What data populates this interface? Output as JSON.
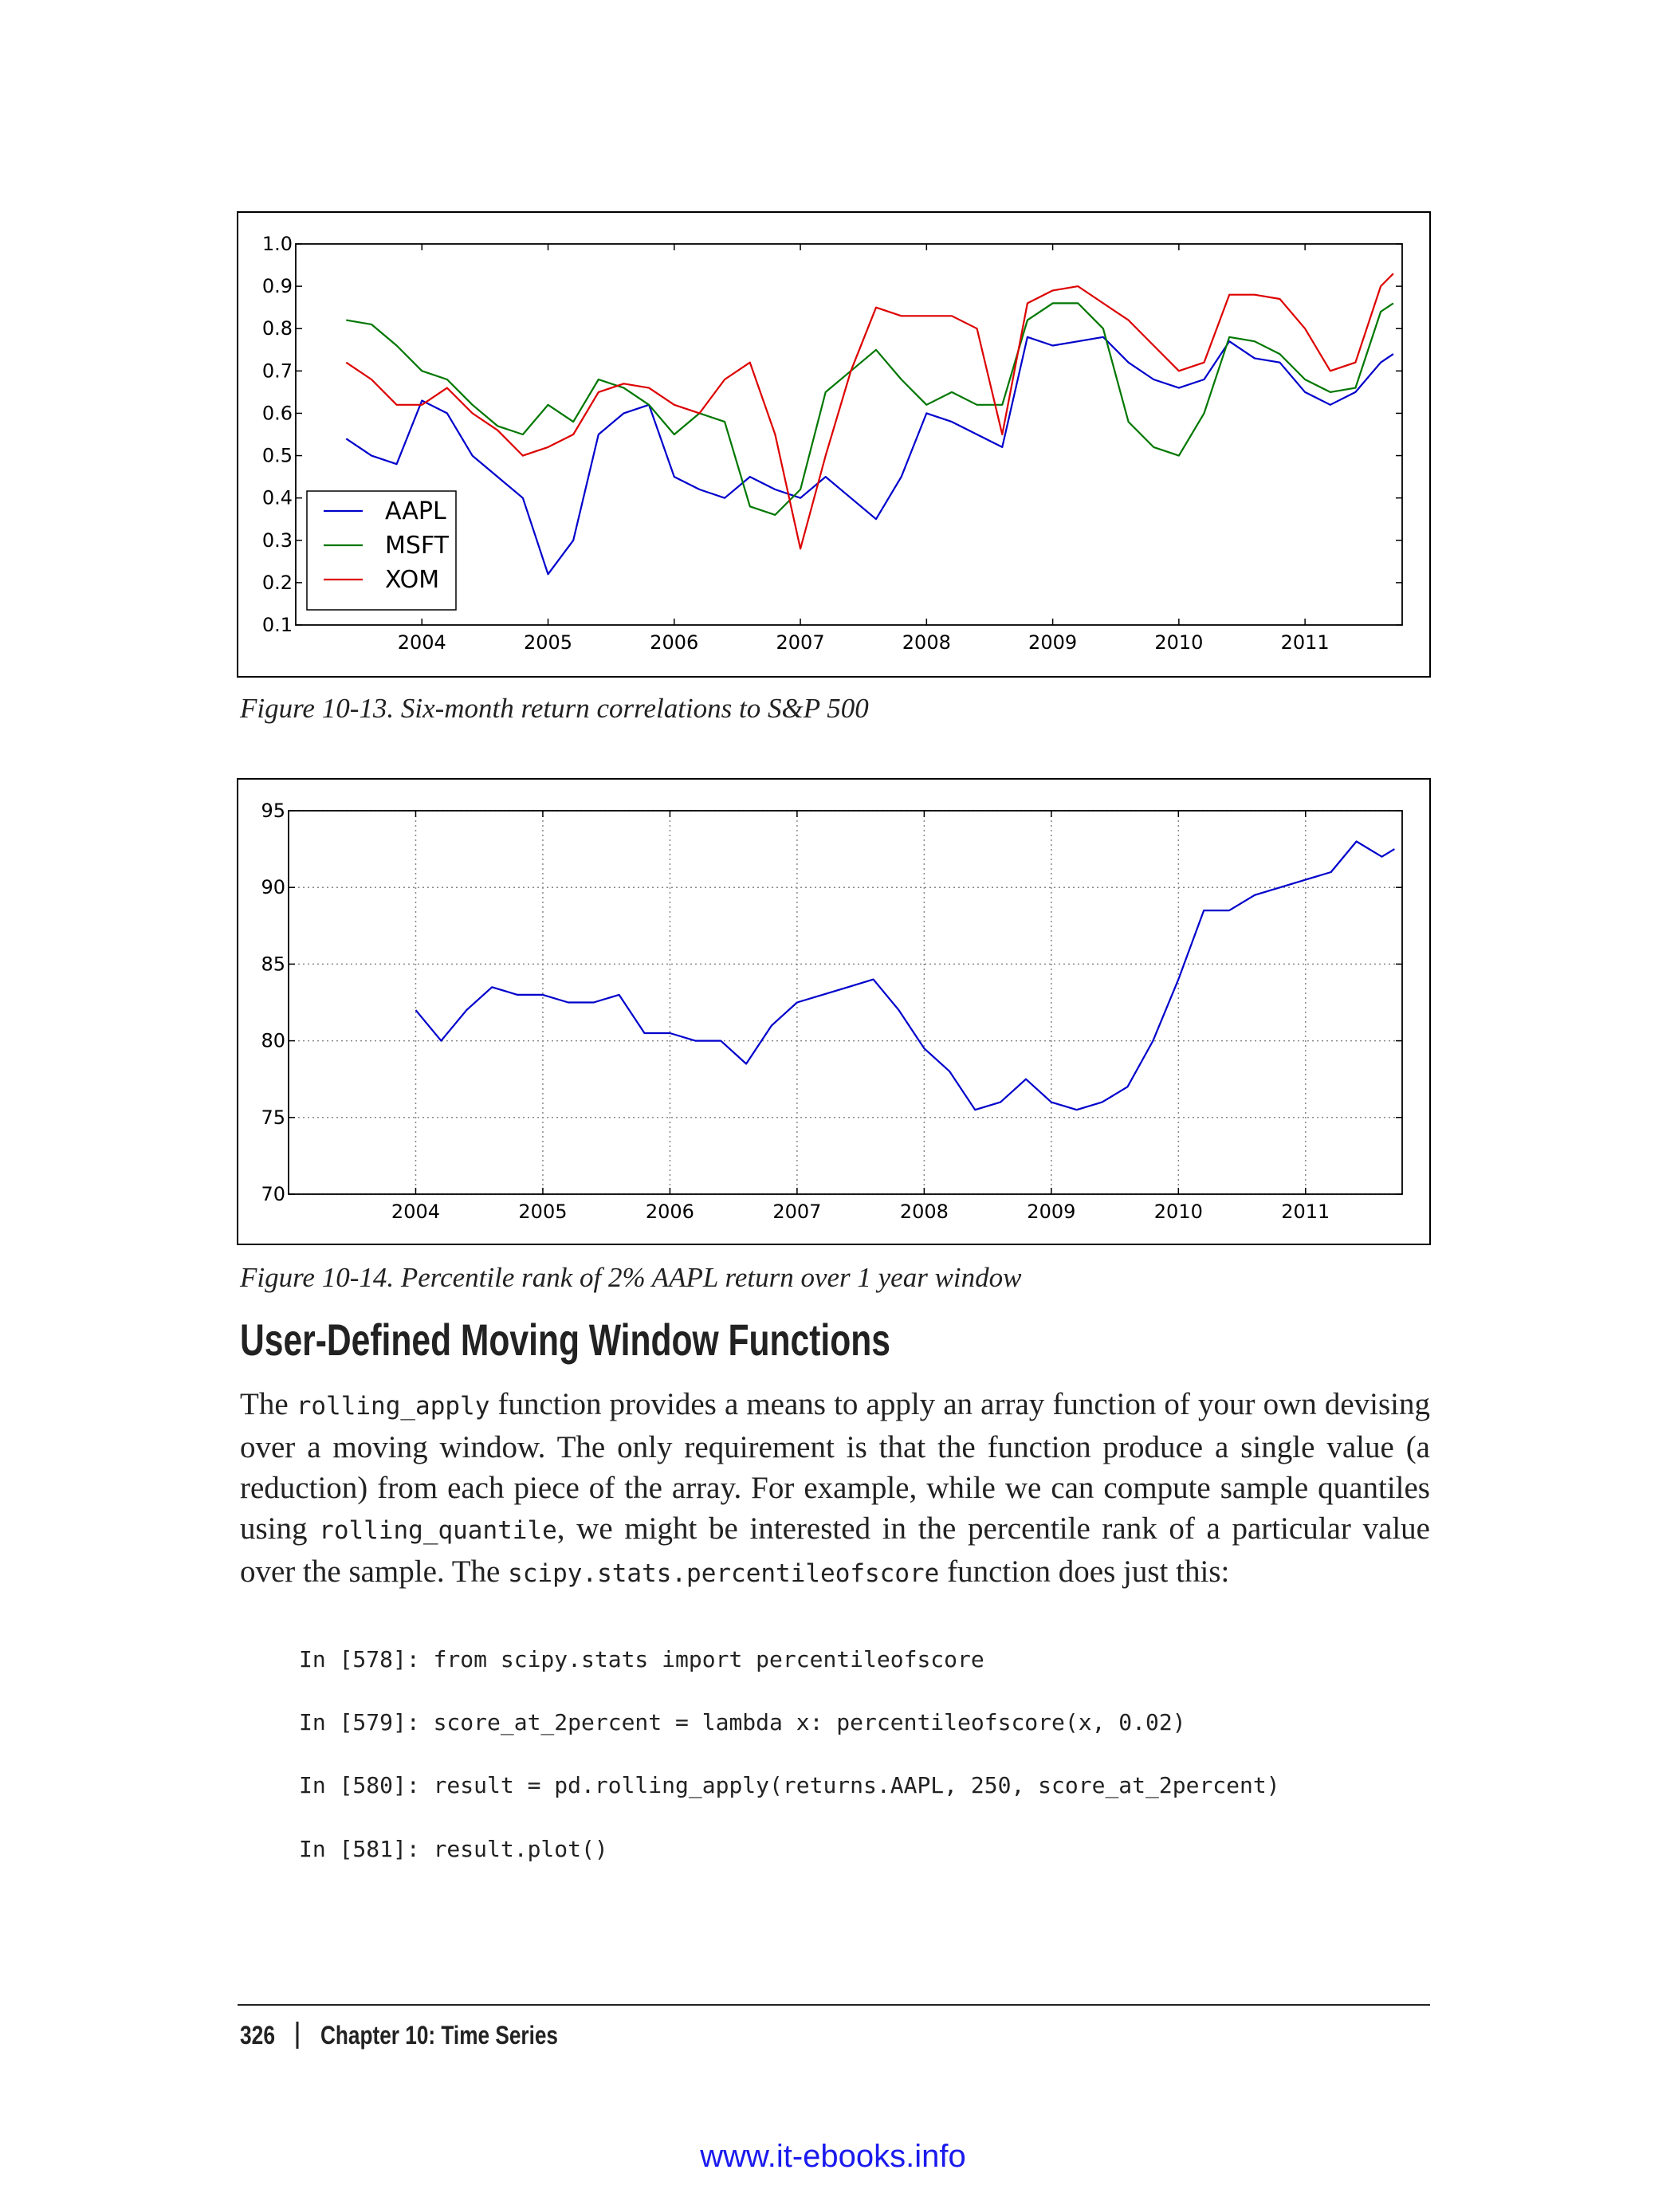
{
  "chart_data": [
    {
      "type": "line",
      "x": [
        2003.4,
        2003.6,
        2003.8,
        2004.0,
        2004.2,
        2004.4,
        2004.6,
        2004.8,
        2005.0,
        2005.2,
        2005.4,
        2005.6,
        2005.8,
        2006.0,
        2006.2,
        2006.4,
        2006.6,
        2006.8,
        2007.0,
        2007.2,
        2007.4,
        2007.6,
        2007.8,
        2008.0,
        2008.2,
        2008.4,
        2008.6,
        2008.8,
        2009.0,
        2009.2,
        2009.4,
        2009.6,
        2009.8,
        2010.0,
        2010.2,
        2010.4,
        2010.6,
        2010.8,
        2011.0,
        2011.2,
        2011.4,
        2011.6,
        2011.7
      ],
      "series": [
        {
          "name": "AAPL",
          "color": "#0000cc",
          "values": [
            0.54,
            0.5,
            0.48,
            0.63,
            0.6,
            0.5,
            0.45,
            0.4,
            0.22,
            0.3,
            0.55,
            0.6,
            0.62,
            0.45,
            0.42,
            0.4,
            0.45,
            0.42,
            0.4,
            0.45,
            0.4,
            0.35,
            0.45,
            0.6,
            0.58,
            0.55,
            0.52,
            0.78,
            0.76,
            0.77,
            0.78,
            0.72,
            0.68,
            0.66,
            0.68,
            0.77,
            0.73,
            0.72,
            0.65,
            0.62,
            0.65,
            0.72,
            0.74
          ]
        },
        {
          "name": "MSFT",
          "color": "#007700",
          "values": [
            0.82,
            0.81,
            0.76,
            0.7,
            0.68,
            0.62,
            0.57,
            0.55,
            0.62,
            0.58,
            0.68,
            0.66,
            0.62,
            0.55,
            0.6,
            0.58,
            0.38,
            0.36,
            0.42,
            0.65,
            0.7,
            0.75,
            0.68,
            0.62,
            0.65,
            0.62,
            0.62,
            0.82,
            0.86,
            0.86,
            0.8,
            0.58,
            0.52,
            0.5,
            0.6,
            0.78,
            0.77,
            0.74,
            0.68,
            0.65,
            0.66,
            0.84,
            0.86
          ]
        },
        {
          "name": "XOM",
          "color": "#dd0000",
          "values": [
            0.72,
            0.68,
            0.62,
            0.62,
            0.66,
            0.6,
            0.56,
            0.5,
            0.52,
            0.55,
            0.65,
            0.67,
            0.66,
            0.62,
            0.6,
            0.68,
            0.72,
            0.55,
            0.28,
            0.5,
            0.7,
            0.85,
            0.83,
            0.83,
            0.83,
            0.8,
            0.55,
            0.86,
            0.89,
            0.9,
            0.86,
            0.82,
            0.76,
            0.7,
            0.72,
            0.88,
            0.88,
            0.87,
            0.8,
            0.7,
            0.72,
            0.9,
            0.93
          ]
        }
      ],
      "xlim": [
        2003.0,
        2011.77
      ],
      "ylim": [
        0.1,
        1
      ],
      "xticks": [
        2004,
        2005,
        2006,
        2007,
        2008,
        2009,
        2010,
        2011
      ],
      "yticks": [
        0.1,
        0.2,
        0.3,
        0.4,
        0.5,
        0.6,
        0.7,
        0.8,
        0.9,
        {
          "value": 1,
          "label": "1.0"
        }
      ],
      "grid": false,
      "legend": "lower left"
    },
    {
      "type": "line",
      "x": [
        2004.0,
        2004.2,
        2004.4,
        2004.6,
        2004.8,
        2005.0,
        2005.2,
        2005.4,
        2005.6,
        2005.8,
        2006.0,
        2006.2,
        2006.4,
        2006.6,
        2006.8,
        2007.0,
        2007.2,
        2007.4,
        2007.6,
        2007.8,
        2008.0,
        2008.2,
        2008.4,
        2008.6,
        2008.8,
        2009.0,
        2009.2,
        2009.4,
        2009.6,
        2009.8,
        2010.0,
        2010.2,
        2010.4,
        2010.6,
        2010.8,
        2011.0,
        2011.2,
        2011.4,
        2011.6,
        2011.7
      ],
      "series": [
        {
          "color": "#0000cc",
          "values": [
            82,
            80,
            82,
            83.5,
            83,
            83,
            82.5,
            82.5,
            83,
            80.5,
            80.5,
            80,
            80,
            78.5,
            81,
            82.5,
            83,
            83.5,
            84,
            82,
            79.5,
            78,
            75.5,
            76,
            77.5,
            76,
            75.5,
            76,
            77,
            80,
            84,
            88.5,
            88.5,
            89.5,
            90,
            90.5,
            91,
            93,
            92,
            92.5
          ]
        }
      ],
      "xlim": [
        2003.0,
        2011.76
      ],
      "ylim": [
        70,
        95
      ],
      "xticks": [
        2004,
        2005,
        2006,
        2007,
        2008,
        2009,
        2010,
        2011
      ],
      "yticks": [
        70,
        75,
        80,
        85,
        90,
        95
      ],
      "grid": true
    }
  ],
  "captions": [
    "Figure 10-13. Six-month return correlations to S&P 500",
    "Figure 10-14. Percentile rank of 2% AAPL return over 1 year window"
  ],
  "section": {
    "heading": "User-Defined Moving Window Functions",
    "paragraph": [
      "The ",
      "rolling_apply",
      " function provides a means to apply an array function of your own devising over a moving window. The only requirement is that the function produce a single value (a reduction) from each piece of the array. For example, while we can compute sample quantiles using ",
      "rolling_quantile",
      ", we might be interested in the percentile rank of a particular value over the sample. The ",
      "scipy.stats.percentileofscore",
      " function does just this:"
    ],
    "code": [
      "In [578]: from scipy.stats import percentileofscore",
      "In [579]: score_at_2percent = lambda x: percentileofscore(x, 0.02)",
      "In [580]: result = pd.rolling_apply(returns.AAPL, 250, score_at_2percent)",
      "In [581]: result.plot()"
    ]
  },
  "footer": {
    "page": "326",
    "chapter": "Chapter 10: Time Series"
  },
  "watermark": "www.it-ebooks.info"
}
